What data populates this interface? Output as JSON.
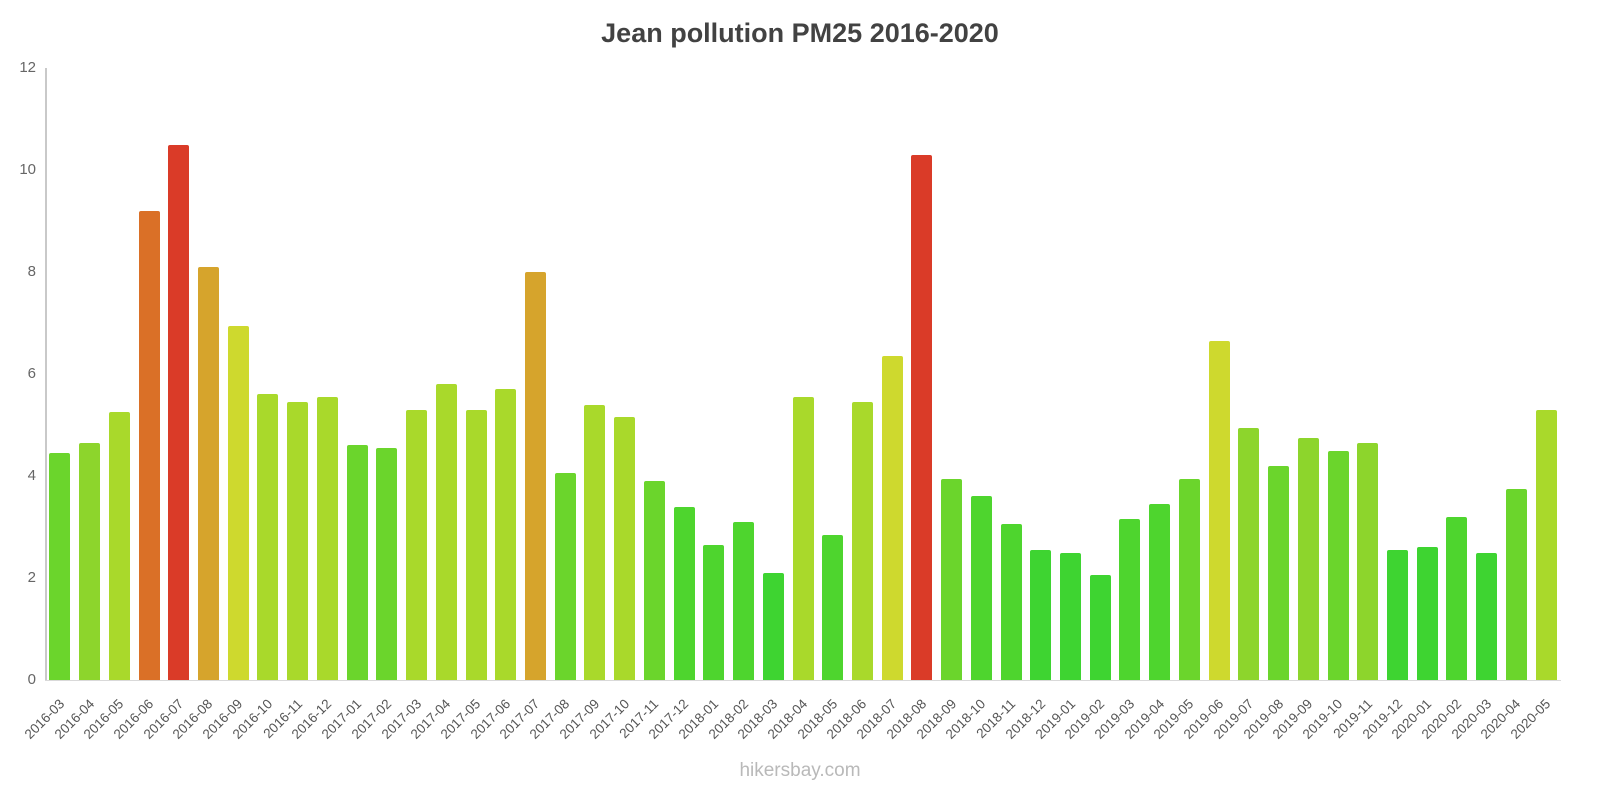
{
  "chart_data": {
    "type": "bar",
    "title": "Jean pollution PM25 2016-2020",
    "watermark": "hikersbay.com",
    "xlabel": "",
    "ylabel": "",
    "ylim": [
      0,
      12
    ],
    "yticks": [
      0,
      2,
      4,
      6,
      8,
      10,
      12
    ],
    "grid": "off",
    "legend": "none",
    "categories": [
      "2016-03",
      "2016-04",
      "2016-05",
      "2016-06",
      "2016-07",
      "2016-08",
      "2016-09",
      "2016-10",
      "2016-11",
      "2016-12",
      "2017-01",
      "2017-02",
      "2017-03",
      "2017-04",
      "2017-05",
      "2017-06",
      "2017-07",
      "2017-08",
      "2017-09",
      "2017-10",
      "2017-11",
      "2017-12",
      "2018-01",
      "2018-02",
      "2018-03",
      "2018-04",
      "2018-05",
      "2018-06",
      "2018-07",
      "2018-08",
      "2018-09",
      "2018-10",
      "2018-11",
      "2018-12",
      "2019-01",
      "2019-02",
      "2019-03",
      "2019-04",
      "2019-05",
      "2019-06",
      "2019-07",
      "2019-08",
      "2019-09",
      "2019-10",
      "2019-11",
      "2019-12",
      "2020-01",
      "2020-02",
      "2020-03",
      "2020-04",
      "2020-05"
    ],
    "values": [
      4.45,
      4.65,
      5.25,
      9.2,
      10.5,
      8.1,
      6.95,
      5.6,
      5.45,
      5.55,
      4.6,
      4.55,
      5.3,
      5.8,
      5.3,
      5.7,
      8.0,
      4.05,
      5.4,
      5.15,
      3.9,
      3.4,
      2.65,
      3.1,
      2.1,
      5.55,
      2.85,
      5.45,
      6.35,
      10.3,
      3.95,
      3.6,
      3.05,
      2.55,
      2.5,
      2.05,
      3.15,
      3.45,
      3.95,
      6.65,
      4.95,
      4.2,
      4.75,
      4.5,
      4.65,
      2.55,
      2.6,
      3.2,
      2.5,
      3.75,
      5.3
    ],
    "color_scale": [
      {
        "max": 2.6,
        "color": "#3ed431"
      },
      {
        "max": 3.6,
        "color": "#4ed52e"
      },
      {
        "max": 4.6,
        "color": "#6bd52c"
      },
      {
        "max": 5.05,
        "color": "#8dd52c"
      },
      {
        "max": 6.05,
        "color": "#a9d92b"
      },
      {
        "max": 7.05,
        "color": "#ced92e"
      },
      {
        "max": 8.6,
        "color": "#d6a42c"
      },
      {
        "max": 9.7,
        "color": "#da7027"
      },
      {
        "max": 99,
        "color": "#da3b28"
      }
    ],
    "colors": {
      "axis": "#c9c9c9",
      "title_text": "#424242",
      "tick_text": "#666666",
      "watermark_text": "#b9b9b9",
      "background": "#ffffff"
    }
  }
}
